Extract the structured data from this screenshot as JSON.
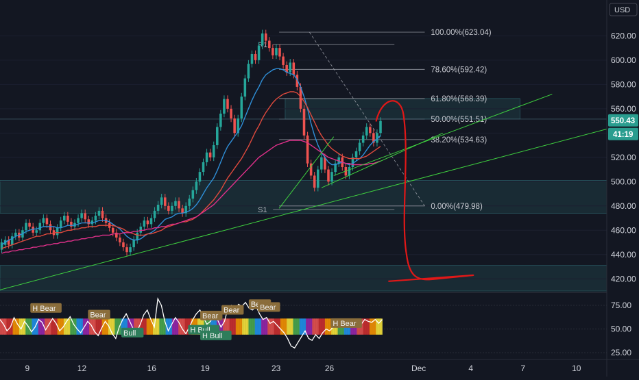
{
  "chart_data": {
    "type": "candlestick",
    "currency": "USD",
    "y_axis": {
      "ylim": [
        410,
        645
      ],
      "ticks": [
        "620.00",
        "600.00",
        "580.00",
        "560.00",
        "540.00",
        "520.00",
        "500.00",
        "480.00",
        "460.00",
        "440.00",
        "420.00"
      ]
    },
    "x_axis": {
      "ticks": [
        "9",
        "12",
        "16",
        "19",
        "23",
        "26",
        "Dec",
        "4",
        "7",
        "10"
      ]
    },
    "current_price": "550.43",
    "countdown": "41:19",
    "fibonacci": [
      {
        "label": "100.00%(623.04)",
        "price": 623.04
      },
      {
        "label": "78.60%(592.42)",
        "price": 592.42
      },
      {
        "label": "61.80%(568.39)",
        "price": 568.39
      },
      {
        "label": "50.00%(551.51)",
        "price": 551.51
      },
      {
        "label": "38.20%(534.63)",
        "price": 534.63
      },
      {
        "label": "0.00%(479.98)",
        "price": 479.98
      }
    ],
    "levels": [
      {
        "label": "R1",
        "price": 613
      },
      {
        "label": "S1",
        "price": 477
      }
    ],
    "zones": [
      {
        "from": 474,
        "to": 501,
        "color": "#1f3d44"
      },
      {
        "from": 410,
        "to": 431,
        "color": "#1f3d44"
      },
      {
        "from": 551.5,
        "to": 568.4,
        "color": "#1f3d44"
      }
    ],
    "candles": [
      [
        444,
        450
      ],
      [
        448,
        452
      ],
      [
        452,
        448
      ],
      [
        448,
        455
      ],
      [
        455,
        458
      ],
      [
        458,
        454
      ],
      [
        454,
        460
      ],
      [
        460,
        466
      ],
      [
        466,
        463
      ],
      [
        463,
        458
      ],
      [
        458,
        460
      ],
      [
        460,
        466
      ],
      [
        466,
        470
      ],
      [
        470,
        465
      ],
      [
        465,
        460
      ],
      [
        460,
        456
      ],
      [
        456,
        462
      ],
      [
        462,
        468
      ],
      [
        468,
        472
      ],
      [
        472,
        467
      ],
      [
        467,
        463
      ],
      [
        463,
        466
      ],
      [
        466,
        470
      ],
      [
        470,
        474
      ],
      [
        474,
        469
      ],
      [
        469,
        465
      ],
      [
        465,
        468
      ],
      [
        468,
        472
      ],
      [
        472,
        476
      ],
      [
        476,
        470
      ],
      [
        470,
        466
      ],
      [
        466,
        462
      ],
      [
        462,
        458
      ],
      [
        458,
        454
      ],
      [
        454,
        450
      ],
      [
        450,
        446
      ],
      [
        446,
        442
      ],
      [
        442,
        446
      ],
      [
        446,
        452
      ],
      [
        452,
        458
      ],
      [
        458,
        463
      ],
      [
        463,
        468
      ],
      [
        468,
        465
      ],
      [
        465,
        470
      ],
      [
        470,
        476
      ],
      [
        476,
        481
      ],
      [
        481,
        487
      ],
      [
        487,
        480
      ],
      [
        480,
        476
      ],
      [
        476,
        480
      ],
      [
        480,
        484
      ],
      [
        484,
        478
      ],
      [
        478,
        474
      ],
      [
        474,
        480
      ],
      [
        480,
        486
      ],
      [
        486,
        493
      ],
      [
        493,
        500
      ],
      [
        500,
        508
      ],
      [
        508,
        516
      ],
      [
        516,
        524
      ],
      [
        524,
        520
      ],
      [
        520,
        530
      ],
      [
        530,
        545
      ],
      [
        545,
        556
      ],
      [
        556,
        568
      ],
      [
        568,
        560
      ],
      [
        560,
        552
      ],
      [
        552,
        540
      ],
      [
        540,
        552
      ],
      [
        552,
        570
      ],
      [
        570,
        585
      ],
      [
        585,
        597
      ],
      [
        597,
        605
      ],
      [
        605,
        600
      ],
      [
        600,
        612
      ],
      [
        612,
        622
      ],
      [
        622,
        616
      ],
      [
        616,
        610
      ],
      [
        610,
        604
      ],
      [
        604,
        610
      ],
      [
        610,
        603
      ],
      [
        603,
        596
      ],
      [
        596,
        590
      ],
      [
        590,
        598
      ],
      [
        598,
        588
      ],
      [
        588,
        578
      ],
      [
        578,
        560
      ],
      [
        560,
        538
      ],
      [
        538,
        515
      ],
      [
        515,
        505
      ],
      [
        505,
        495
      ],
      [
        495,
        510
      ],
      [
        510,
        520
      ],
      [
        520,
        510
      ],
      [
        510,
        500
      ],
      [
        500,
        508
      ],
      [
        508,
        515
      ],
      [
        515,
        520
      ],
      [
        520,
        512
      ],
      [
        512,
        505
      ],
      [
        505,
        512
      ],
      [
        512,
        520
      ],
      [
        520,
        525
      ],
      [
        525,
        532
      ],
      [
        532,
        538
      ],
      [
        538,
        545
      ],
      [
        545,
        540
      ],
      [
        540,
        532
      ],
      [
        532,
        540
      ],
      [
        540,
        550
      ]
    ],
    "ma_series": [
      {
        "color": "#2f8fd8",
        "values": [
          448,
          450,
          452,
          453,
          455,
          456,
          457,
          459,
          460,
          461,
          461,
          462,
          463,
          463,
          463,
          463,
          462,
          462,
          463,
          464,
          464,
          464,
          465,
          466,
          466,
          466,
          466,
          467,
          468,
          468,
          468,
          467,
          465,
          463,
          461,
          458,
          455,
          453,
          452,
          452,
          453,
          455,
          457,
          458,
          460,
          463,
          466,
          469,
          470,
          471,
          473,
          474,
          474,
          475,
          476,
          478,
          481,
          485,
          490,
          495,
          499,
          503,
          509,
          516,
          523,
          529,
          533,
          537,
          541,
          546,
          553,
          560,
          567,
          573,
          578,
          584,
          588,
          590,
          592,
          593,
          593,
          592,
          590,
          589,
          588,
          584,
          578,
          570,
          560,
          548,
          538,
          530,
          524,
          520,
          516,
          514,
          514,
          515,
          516,
          515,
          514,
          515,
          517,
          519,
          522,
          526,
          530,
          533,
          535,
          538
        ]
      },
      {
        "color": "#e04a3d",
        "values": [
          445,
          446,
          447,
          448,
          449,
          450,
          451,
          452,
          453,
          454,
          455,
          455,
          456,
          457,
          457,
          458,
          458,
          458,
          459,
          460,
          460,
          461,
          461,
          462,
          462,
          463,
          463,
          463,
          464,
          464,
          464,
          464,
          464,
          463,
          462,
          461,
          459,
          458,
          457,
          456,
          456,
          456,
          457,
          457,
          458,
          459,
          460,
          462,
          463,
          464,
          465,
          466,
          467,
          467,
          468,
          469,
          471,
          473,
          476,
          479,
          482,
          485,
          489,
          493,
          498,
          503,
          507,
          511,
          515,
          519,
          524,
          529,
          535,
          541,
          546,
          552,
          557,
          561,
          565,
          568,
          570,
          572,
          573,
          574,
          574,
          573,
          570,
          566,
          561,
          555,
          549,
          543,
          538,
          534,
          530,
          527,
          525,
          523,
          521,
          520,
          519,
          519,
          519,
          519,
          520,
          521,
          523,
          525,
          527,
          529
        ]
      },
      {
        "color": "#e0308a",
        "values": [
          441,
          442,
          442,
          443,
          443,
          444,
          444,
          445,
          445,
          446,
          446,
          447,
          447,
          448,
          448,
          449,
          449,
          450,
          450,
          451,
          451,
          452,
          452,
          453,
          453,
          454,
          454,
          455,
          455,
          456,
          456,
          456,
          457,
          457,
          457,
          458,
          458,
          458,
          459,
          459,
          460,
          460,
          461,
          461,
          462,
          462,
          463,
          463,
          464,
          465,
          465,
          466,
          467,
          468,
          469,
          470,
          471,
          473,
          475,
          477,
          479,
          481,
          484,
          487,
          490,
          493,
          496,
          499,
          502,
          505,
          508,
          511,
          514,
          517,
          520,
          522,
          524,
          526,
          528,
          530,
          531,
          532,
          533,
          534,
          534,
          534,
          534,
          533,
          532,
          530,
          528,
          526,
          524,
          522,
          520,
          519,
          518,
          517,
          516,
          515,
          515,
          514,
          514,
          514,
          514,
          514,
          515,
          515,
          516,
          517
        ]
      }
    ],
    "trendlines": [
      {
        "from": [
          -0.06,
          403
        ],
        "to": [
          1.3,
          583
        ],
        "color": "#3fd13f"
      },
      {
        "from": [
          0.46,
          478
        ],
        "to": [
          0.55,
          537
        ],
        "color": "#3fd13f"
      },
      {
        "from": [
          0.53,
          495
        ],
        "to": [
          0.73,
          540
        ],
        "color": "#3fd13f"
      },
      {
        "from": [
          0.55,
          505
        ],
        "to": [
          0.91,
          572
        ],
        "color": "#3fd13f"
      }
    ],
    "oscillator": {
      "ylim": [
        20,
        85
      ],
      "ticks": [
        "75.00",
        "50.00",
        "25.00"
      ],
      "labels": [
        "H Bear",
        "Bear",
        "Bull",
        "H Bull",
        "H Bull",
        "Bear",
        "Bear",
        "Bear",
        "Bear",
        "H Bear"
      ],
      "line": [
        60,
        55,
        48,
        52,
        62,
        55,
        50,
        58,
        53,
        47,
        52,
        60,
        57,
        49,
        55,
        61,
        56,
        48,
        52,
        58,
        63,
        55,
        50,
        46,
        52,
        58,
        54,
        47,
        43,
        51,
        58,
        53,
        45,
        40,
        52,
        60,
        66,
        58,
        50,
        47,
        55,
        65,
        70,
        60,
        52,
        82,
        75,
        58,
        48,
        55,
        62,
        57,
        50,
        45,
        52,
        60,
        66,
        70,
        62,
        55,
        58,
        64,
        60,
        52,
        58,
        72,
        75,
        70,
        76,
        74,
        78,
        72,
        70,
        74,
        66,
        60,
        62,
        56,
        58,
        54,
        50,
        46,
        40,
        32,
        30,
        36,
        42,
        48,
        40,
        38,
        44,
        40,
        46,
        50,
        48,
        52,
        55,
        58,
        54,
        56,
        60,
        56,
        58,
        55,
        60,
        58,
        57,
        60,
        56,
        60
      ]
    }
  }
}
